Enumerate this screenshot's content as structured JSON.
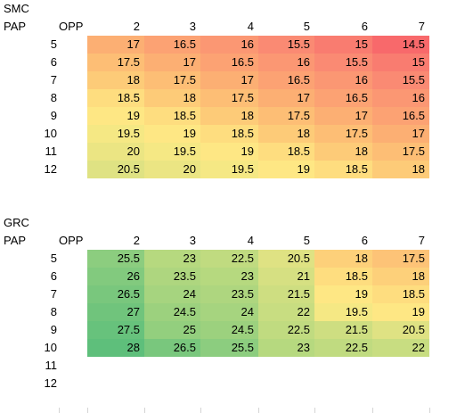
{
  "tables": [
    {
      "name_label": "SMC",
      "row_header": "PAP",
      "col_header": "OPP",
      "columns": [
        "2",
        "3",
        "4",
        "5",
        "6",
        "7"
      ],
      "row_labels": [
        "5",
        "6",
        "7",
        "8",
        "9",
        "10",
        "11",
        "12"
      ],
      "rows": [
        {
          "values": [
            "17",
            "16.5",
            "16",
            "15.5",
            "15",
            "14.5"
          ],
          "colors": [
            "#fcaf73",
            "#fca273",
            "#fb9773",
            "#fa8a73",
            "#f97c70",
            "#f8696b"
          ]
        },
        {
          "values": [
            "17.5",
            "17",
            "16.5",
            "16",
            "15.5",
            "15"
          ],
          "colors": [
            "#fdbe75",
            "#fcaf73",
            "#fca273",
            "#fb9773",
            "#fa8a73",
            "#f97c70"
          ]
        },
        {
          "values": [
            "18",
            "17.5",
            "17",
            "16.5",
            "16",
            "15.5"
          ],
          "colors": [
            "#fdcb78",
            "#fdbe75",
            "#fcaf73",
            "#fca273",
            "#fb9773",
            "#fa8a73"
          ]
        },
        {
          "values": [
            "18.5",
            "18",
            "17.5",
            "17",
            "16.5",
            "16"
          ],
          "colors": [
            "#fedd7f",
            "#fdcb78",
            "#fdbe75",
            "#fcaf73",
            "#fca273",
            "#fb9773"
          ]
        },
        {
          "values": [
            "19",
            "18.5",
            "18",
            "17.5",
            "17",
            "16.5"
          ],
          "colors": [
            "#fee784",
            "#fedd7f",
            "#fdcb78",
            "#fdbe75",
            "#fcaf73",
            "#fca273"
          ]
        },
        {
          "values": [
            "19.5",
            "19",
            "18.5",
            "18",
            "17.5",
            "17"
          ],
          "colors": [
            "#f5e884",
            "#fee784",
            "#fedd7f",
            "#fdcb78",
            "#fdbe75",
            "#fcaf73"
          ]
        },
        {
          "values": [
            "20",
            "19.5",
            "19",
            "18.5",
            "18",
            "17.5"
          ],
          "colors": [
            "#ebe583",
            "#f5e884",
            "#fee784",
            "#fedd7f",
            "#fdcb78",
            "#fdbe75"
          ]
        },
        {
          "values": [
            "20.5",
            "20",
            "19.5",
            "19",
            "18.5",
            "18"
          ],
          "colors": [
            "#dfe283",
            "#ebe583",
            "#f5e884",
            "#fee784",
            "#fedd7f",
            "#fdcb78"
          ]
        }
      ]
    },
    {
      "name_label": "GRC",
      "row_header": "PAP",
      "col_header": "OPP",
      "columns": [
        "2",
        "3",
        "4",
        "5",
        "6",
        "7"
      ],
      "row_labels": [
        "5",
        "6",
        "7",
        "8",
        "9",
        "10",
        "11",
        "12"
      ],
      "rows": [
        {
          "values": [
            "25.5",
            "23",
            "22.5",
            "20.5",
            "18",
            "17.5"
          ],
          "colors": [
            "#8ccd7f",
            "#b6d97f",
            "#c0db80",
            "#dfe283",
            "#fdd07a",
            "#fdc377"
          ]
        },
        {
          "values": [
            "26",
            "23.5",
            "23",
            "21",
            "18.5",
            "18"
          ],
          "colors": [
            "#82ca7e",
            "#aed67f",
            "#b6d97f",
            "#d6e082",
            "#fedd7f",
            "#fdd07a"
          ]
        },
        {
          "values": [
            "26.5",
            "24",
            "23.5",
            "21.5",
            "19",
            "18.5"
          ],
          "colors": [
            "#79c77d",
            "#a6d47f",
            "#aed67f",
            "#cede81",
            "#fee784",
            "#fedd7f"
          ]
        },
        {
          "values": [
            "27",
            "24.5",
            "24",
            "22",
            "19.5",
            "19"
          ],
          "colors": [
            "#70c47c",
            "#9cd17e",
            "#a6d47f",
            "#c8dd81",
            "#f5e884",
            "#fee784"
          ]
        },
        {
          "values": [
            "27.5",
            "25",
            "24.5",
            "22.5",
            "21.5",
            "20.5"
          ],
          "colors": [
            "#67c27c",
            "#93cf7e",
            "#9cd17e",
            "#c0db80",
            "#cede81",
            "#dfe283"
          ]
        },
        {
          "values": [
            "28",
            "26.5",
            "25.5",
            "23",
            "22.5",
            "22"
          ],
          "colors": [
            "#5ebf7b",
            "#79c77d",
            "#8ccd7f",
            "#b6d97f",
            "#c0db80",
            "#c8dd81"
          ]
        },
        {
          "values": [],
          "colors": []
        },
        {
          "values": [],
          "colors": []
        }
      ]
    }
  ]
}
